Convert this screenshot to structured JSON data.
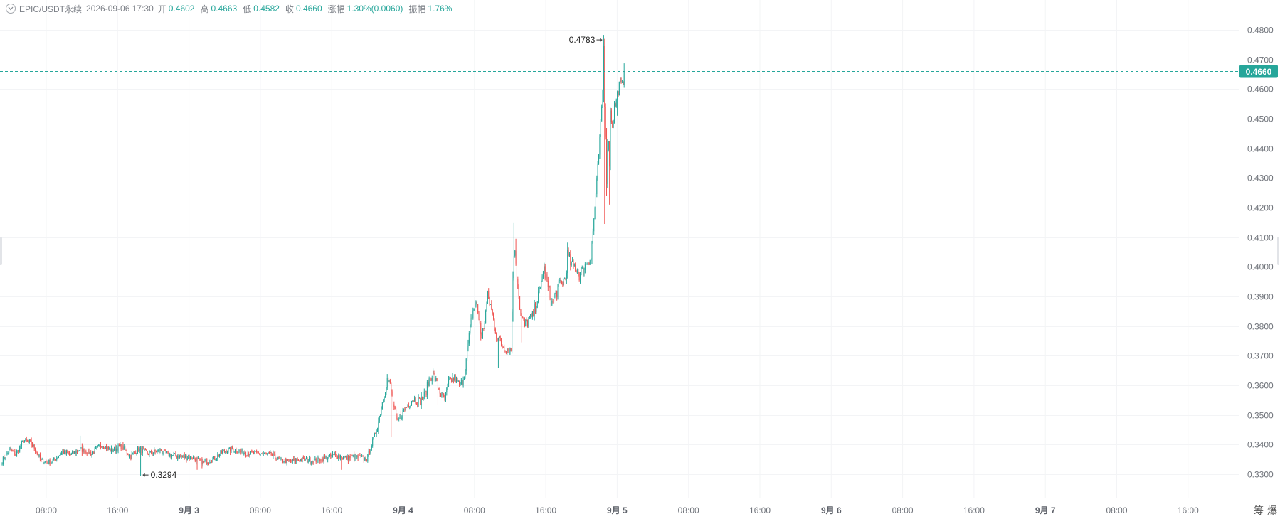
{
  "header": {
    "symbol": "EPIC/USDT永续",
    "datetime": "2026-09-06 17:30",
    "open_label": "开",
    "open_value": "0.4602",
    "high_label": "高",
    "high_value": "0.4663",
    "low_label": "低",
    "low_value": "0.4582",
    "close_label": "收",
    "close_value": "0.4660",
    "change_label": "涨幅",
    "change_value": "1.30%(0.0060)",
    "amplitude_label": "振幅",
    "amplitude_value": "1.76%"
  },
  "colors": {
    "up": "#26a69a",
    "down": "#ef5350",
    "current_price_tag": "#26a69a",
    "grid": "#f3f4f6"
  },
  "corner_buttons": [
    "筹",
    "爆"
  ],
  "chart_data": {
    "type": "candlestick",
    "symbol": "EPIC/USDT永续",
    "interval_minutes": 30,
    "ylim": [
      0.3255,
      0.4815
    ],
    "y_ticks": [
      "0.4800",
      "0.4700",
      "0.4600",
      "0.4500",
      "0.4400",
      "0.4300",
      "0.4200",
      "0.4100",
      "0.4000",
      "0.3900",
      "0.3800",
      "0.3700",
      "0.3600",
      "0.3500",
      "0.3400",
      "0.3300"
    ],
    "x_ticks": [
      {
        "label": "08:00",
        "day": false
      },
      {
        "label": "16:00",
        "day": false
      },
      {
        "label": "9月 3",
        "day": true
      },
      {
        "label": "08:00",
        "day": false
      },
      {
        "label": "16:00",
        "day": false
      },
      {
        "label": "9月 4",
        "day": true
      },
      {
        "label": "08:00",
        "day": false
      },
      {
        "label": "16:00",
        "day": false
      },
      {
        "label": "9月 5",
        "day": true
      },
      {
        "label": "08:00",
        "day": false
      },
      {
        "label": "16:00",
        "day": false
      },
      {
        "label": "9月 6",
        "day": true
      },
      {
        "label": "08:00",
        "day": false
      },
      {
        "label": "16:00",
        "day": false
      },
      {
        "label": "9月 7",
        "day": true
      },
      {
        "label": "08:00",
        "day": false
      },
      {
        "label": "16:00",
        "day": false
      }
    ],
    "current_price": 0.466,
    "high_marker": {
      "value": "0.4783"
    },
    "low_marker": {
      "value": "0.3294"
    },
    "anchors": [
      [
        0,
        0.3345
      ],
      [
        8,
        0.3385
      ],
      [
        14,
        0.3365
      ],
      [
        22,
        0.3415
      ],
      [
        30,
        0.3405
      ],
      [
        40,
        0.3345
      ],
      [
        50,
        0.334
      ],
      [
        62,
        0.3375
      ],
      [
        70,
        0.3365
      ],
      [
        80,
        0.3385
      ],
      [
        92,
        0.337
      ],
      [
        102,
        0.34
      ],
      [
        112,
        0.338
      ],
      [
        122,
        0.3395
      ],
      [
        132,
        0.336
      ],
      [
        140,
        0.3385
      ],
      [
        150,
        0.337
      ],
      [
        162,
        0.338
      ],
      [
        172,
        0.3365
      ],
      [
        182,
        0.336
      ],
      [
        196,
        0.3355
      ],
      [
        206,
        0.334
      ],
      [
        216,
        0.335
      ],
      [
        226,
        0.3375
      ],
      [
        236,
        0.3385
      ],
      [
        246,
        0.3375
      ],
      [
        256,
        0.337
      ],
      [
        266,
        0.337
      ],
      [
        276,
        0.3365
      ],
      [
        286,
        0.3345
      ],
      [
        296,
        0.3345
      ],
      [
        310,
        0.335
      ],
      [
        320,
        0.3345
      ],
      [
        332,
        0.3355
      ],
      [
        342,
        0.3365
      ],
      [
        352,
        0.3355
      ],
      [
        362,
        0.336
      ],
      [
        374,
        0.335
      ],
      [
        380,
        0.341
      ],
      [
        384,
        0.345
      ],
      [
        388,
        0.351
      ],
      [
        391,
        0.356
      ],
      [
        395,
        0.362
      ],
      [
        398,
        0.36
      ],
      [
        401,
        0.354
      ],
      [
        405,
        0.347
      ],
      [
        410,
        0.3505
      ],
      [
        416,
        0.3535
      ],
      [
        422,
        0.3555
      ],
      [
        428,
        0.3545
      ],
      [
        434,
        0.357
      ],
      [
        438,
        0.362
      ],
      [
        442,
        0.364
      ],
      [
        446,
        0.3605
      ],
      [
        450,
        0.357
      ],
      [
        454,
        0.355
      ],
      [
        458,
        0.361
      ],
      [
        464,
        0.3625
      ],
      [
        470,
        0.3595
      ],
      [
        474,
        0.364
      ],
      [
        478,
        0.3735
      ],
      [
        482,
        0.384
      ],
      [
        486,
        0.388
      ],
      [
        490,
        0.381
      ],
      [
        492,
        0.376
      ],
      [
        495,
        0.382
      ],
      [
        498,
        0.39
      ],
      [
        501,
        0.387
      ],
      [
        504,
        0.382
      ],
      [
        508,
        0.376
      ],
      [
        512,
        0.374
      ],
      [
        518,
        0.3725
      ],
      [
        522,
        0.372
      ],
      [
        524,
        0.398
      ],
      [
        526,
        0.4065
      ],
      [
        528,
        0.3975
      ],
      [
        532,
        0.3835
      ],
      [
        536,
        0.38
      ],
      [
        540,
        0.382
      ],
      [
        544,
        0.383
      ],
      [
        548,
        0.388
      ],
      [
        552,
        0.392
      ],
      [
        554,
        0.398
      ],
      [
        556,
        0.399
      ],
      [
        560,
        0.393
      ],
      [
        564,
        0.3875
      ],
      [
        568,
        0.391
      ],
      [
        572,
        0.394
      ],
      [
        578,
        0.396
      ],
      [
        580,
        0.404
      ],
      [
        584,
        0.4005
      ],
      [
        588,
        0.4
      ],
      [
        592,
        0.3975
      ],
      [
        596,
        0.399
      ],
      [
        600,
        0.402
      ],
      [
        604,
        0.403
      ],
      [
        606,
        0.412
      ],
      [
        608,
        0.42
      ],
      [
        610,
        0.428
      ],
      [
        612,
        0.438
      ],
      [
        614,
        0.447
      ],
      [
        616,
        0.46
      ],
      [
        617,
        0.474
      ],
      [
        618,
        0.456
      ],
      [
        619,
        0.445
      ],
      [
        620,
        0.43
      ],
      [
        621,
        0.438
      ],
      [
        622,
        0.444
      ],
      [
        623,
        0.435
      ],
      [
        624,
        0.452
      ],
      [
        626,
        0.448
      ],
      [
        628,
        0.454
      ],
      [
        630,
        0.456
      ],
      [
        632,
        0.46
      ],
      [
        634,
        0.462
      ],
      [
        636,
        0.4604
      ],
      [
        638,
        0.466
      ]
    ],
    "wick_overrides": [
      {
        "i": 50,
        "low": 0.3315
      },
      {
        "i": 80,
        "high": 0.343
      },
      {
        "i": 120,
        "high": 0.3405
      },
      {
        "i": 142,
        "low": 0.3295
      },
      {
        "i": 200,
        "low": 0.3315
      },
      {
        "i": 348,
        "low": 0.3315
      },
      {
        "i": 399,
        "low": 0.3425
      },
      {
        "i": 447,
        "low": 0.3535
      },
      {
        "i": 509,
        "low": 0.366
      },
      {
        "i": 525,
        "high": 0.415
      },
      {
        "i": 527,
        "high": 0.4095
      },
      {
        "i": 533,
        "low": 0.3745
      },
      {
        "i": 555,
        "high": 0.398
      },
      {
        "i": 564,
        "low": 0.387
      },
      {
        "i": 581,
        "high": 0.4065
      },
      {
        "i": 617,
        "high": 0.4783
      },
      {
        "i": 618,
        "low": 0.4145
      },
      {
        "i": 623,
        "low": 0.421
      },
      {
        "i": 631,
        "low": 0.451
      }
    ]
  }
}
